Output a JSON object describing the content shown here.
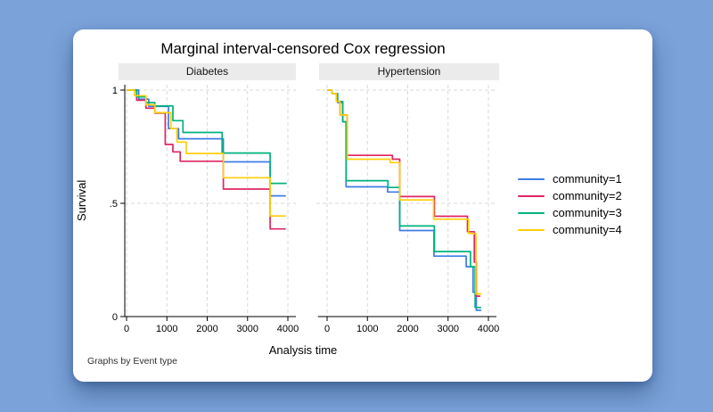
{
  "page": {
    "background_color": "#7ba2d9",
    "card_color": "#ffffff"
  },
  "figure": {
    "title": "Marginal interval-censored Cox regression",
    "ylabel": "Survival",
    "xlabel": "Analysis time",
    "footnote": "Graphs by Event type",
    "legend": [
      {
        "label": "community=1",
        "color": "#3d7ce6"
      },
      {
        "label": "community=2",
        "color": "#e02560"
      },
      {
        "label": "community=3",
        "color": "#00b27d"
      },
      {
        "label": "community=4",
        "color": "#ffce0a"
      }
    ]
  },
  "chart_data": {
    "type": "line",
    "subtype": "step-survival",
    "title": "Marginal interval-censored Cox regression",
    "xlabel": "Analysis time",
    "ylabel": "Survival",
    "footnote": "Graphs by Event type",
    "xlim": [
      0,
      4000
    ],
    "ylim": [
      0,
      1
    ],
    "grid": "dashed",
    "legend_position": "right",
    "x_ticks": [
      0,
      1000,
      2000,
      3000,
      4000
    ],
    "y_ticks": [
      {
        "v": 1,
        "label": "1"
      },
      {
        "v": 0.5,
        "label": ".5"
      },
      {
        "v": 0,
        "label": "0"
      }
    ],
    "panels": [
      {
        "label": "Diabetes",
        "series": [
          {
            "name": "community=1",
            "color": "#3d7ce6",
            "points": [
              [
                0,
                1.0
              ],
              [
                300,
                0.96
              ],
              [
                550,
                0.928
              ],
              [
                1040,
                0.83
              ],
              [
                1290,
                0.785
              ],
              [
                2400,
                0.683
              ],
              [
                3560,
                0.533
              ],
              [
                3950,
                0.533
              ]
            ]
          },
          {
            "name": "community=2",
            "color": "#e02560",
            "points": [
              [
                0,
                1.0
              ],
              [
                250,
                0.955
              ],
              [
                480,
                0.92
              ],
              [
                700,
                0.898
              ],
              [
                960,
                0.76
              ],
              [
                1150,
                0.727
              ],
              [
                1330,
                0.686
              ],
              [
                2400,
                0.563
              ],
              [
                3560,
                0.387
              ],
              [
                3950,
                0.387
              ]
            ]
          },
          {
            "name": "community=3",
            "color": "#00b27d",
            "points": [
              [
                0,
                1.0
              ],
              [
                250,
                0.97
              ],
              [
                480,
                0.945
              ],
              [
                700,
                0.93
              ],
              [
                1150,
                0.865
              ],
              [
                1400,
                0.813
              ],
              [
                2370,
                0.722
              ],
              [
                3560,
                0.588
              ],
              [
                3970,
                0.588
              ]
            ]
          },
          {
            "name": "community=4",
            "color": "#ffce0a",
            "points": [
              [
                0,
                1.0
              ],
              [
                200,
                0.975
              ],
              [
                480,
                0.935
              ],
              [
                700,
                0.9
              ],
              [
                1100,
                0.83
              ],
              [
                1250,
                0.77
              ],
              [
                1480,
                0.72
              ],
              [
                2400,
                0.613
              ],
              [
                3560,
                0.444
              ],
              [
                3950,
                0.444
              ]
            ]
          }
        ]
      },
      {
        "label": "Hypertension",
        "series": [
          {
            "name": "community=1",
            "color": "#3d7ce6",
            "points": [
              [
                0,
                1.0
              ],
              [
                120,
                0.985
              ],
              [
                260,
                0.945
              ],
              [
                390,
                0.86
              ],
              [
                470,
                0.573
              ],
              [
                1500,
                0.55
              ],
              [
                1800,
                0.38
              ],
              [
                2650,
                0.267
              ],
              [
                3450,
                0.22
              ],
              [
                3620,
                0.108
              ],
              [
                3700,
                0.028
              ],
              [
                3820,
                0.028
              ]
            ]
          },
          {
            "name": "community=2",
            "color": "#e02560",
            "points": [
              [
                0,
                1.0
              ],
              [
                120,
                0.985
              ],
              [
                230,
                0.95
              ],
              [
                320,
                0.89
              ],
              [
                500,
                0.712
              ],
              [
                1620,
                0.695
              ],
              [
                1800,
                0.53
              ],
              [
                2660,
                0.443
              ],
              [
                3480,
                0.375
              ],
              [
                3650,
                0.24
              ],
              [
                3700,
                0.09
              ],
              [
                3800,
                0.09
              ]
            ]
          },
          {
            "name": "community=3",
            "color": "#00b27d",
            "points": [
              [
                0,
                1.0
              ],
              [
                120,
                0.985
              ],
              [
                260,
                0.95
              ],
              [
                390,
                0.86
              ],
              [
                470,
                0.6
              ],
              [
                1510,
                0.57
              ],
              [
                1800,
                0.4
              ],
              [
                2660,
                0.287
              ],
              [
                3555,
                0.22
              ],
              [
                3670,
                0.04
              ],
              [
                3820,
                0.04
              ]
            ]
          },
          {
            "name": "community=4",
            "color": "#ffce0a",
            "points": [
              [
                0,
                1.0
              ],
              [
                120,
                0.985
              ],
              [
                230,
                0.95
              ],
              [
                320,
                0.89
              ],
              [
                500,
                0.695
              ],
              [
                1560,
                0.68
              ],
              [
                1800,
                0.515
              ],
              [
                2640,
                0.43
              ],
              [
                3510,
                0.367
              ],
              [
                3690,
                0.1
              ],
              [
                3830,
                0.1
              ]
            ]
          }
        ]
      }
    ]
  }
}
